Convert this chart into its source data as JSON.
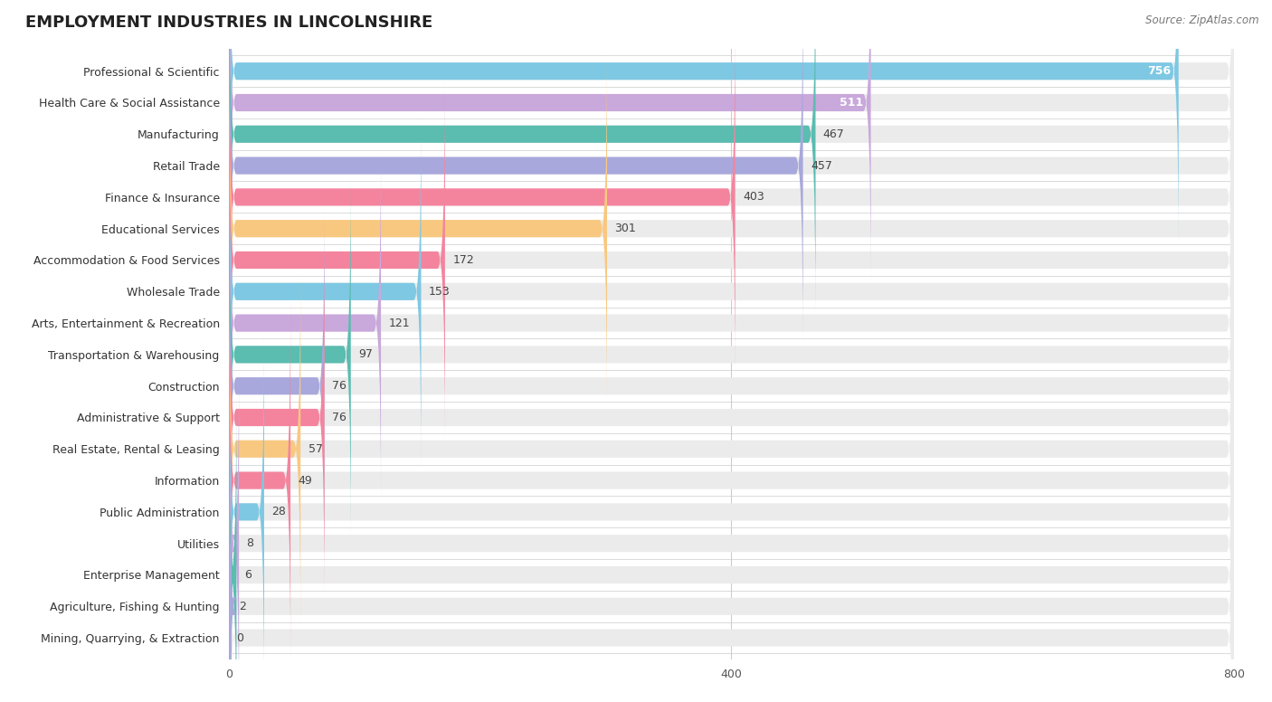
{
  "title": "EMPLOYMENT INDUSTRIES IN LINCOLNSHIRE",
  "source": "Source: ZipAtlas.com",
  "categories": [
    "Professional & Scientific",
    "Health Care & Social Assistance",
    "Manufacturing",
    "Retail Trade",
    "Finance & Insurance",
    "Educational Services",
    "Accommodation & Food Services",
    "Wholesale Trade",
    "Arts, Entertainment & Recreation",
    "Transportation & Warehousing",
    "Construction",
    "Administrative & Support",
    "Real Estate, Rental & Leasing",
    "Information",
    "Public Administration",
    "Utilities",
    "Enterprise Management",
    "Agriculture, Fishing & Hunting",
    "Mining, Quarrying, & Extraction"
  ],
  "values": [
    756,
    511,
    467,
    457,
    403,
    301,
    172,
    153,
    121,
    97,
    76,
    76,
    57,
    49,
    28,
    8,
    6,
    2,
    0
  ],
  "colors": [
    "#7EC8E3",
    "#C9A8DC",
    "#5BBCB0",
    "#A8A8DC",
    "#F4849E",
    "#F9C880",
    "#F4849E",
    "#7EC8E3",
    "#C9A8DC",
    "#5BBCB0",
    "#A8A8DC",
    "#F4849E",
    "#F9C880",
    "#F4849E",
    "#7EC8E3",
    "#C9A8DC",
    "#5BBCB0",
    "#A8A8DC",
    "#F4849E"
  ],
  "xlim": [
    0,
    800
  ],
  "xticks": [
    0,
    400,
    800
  ],
  "bg_color": "#ffffff",
  "bar_bg_color": "#ebebeb",
  "title_fontsize": 13,
  "label_fontsize": 9,
  "value_fontsize": 9
}
